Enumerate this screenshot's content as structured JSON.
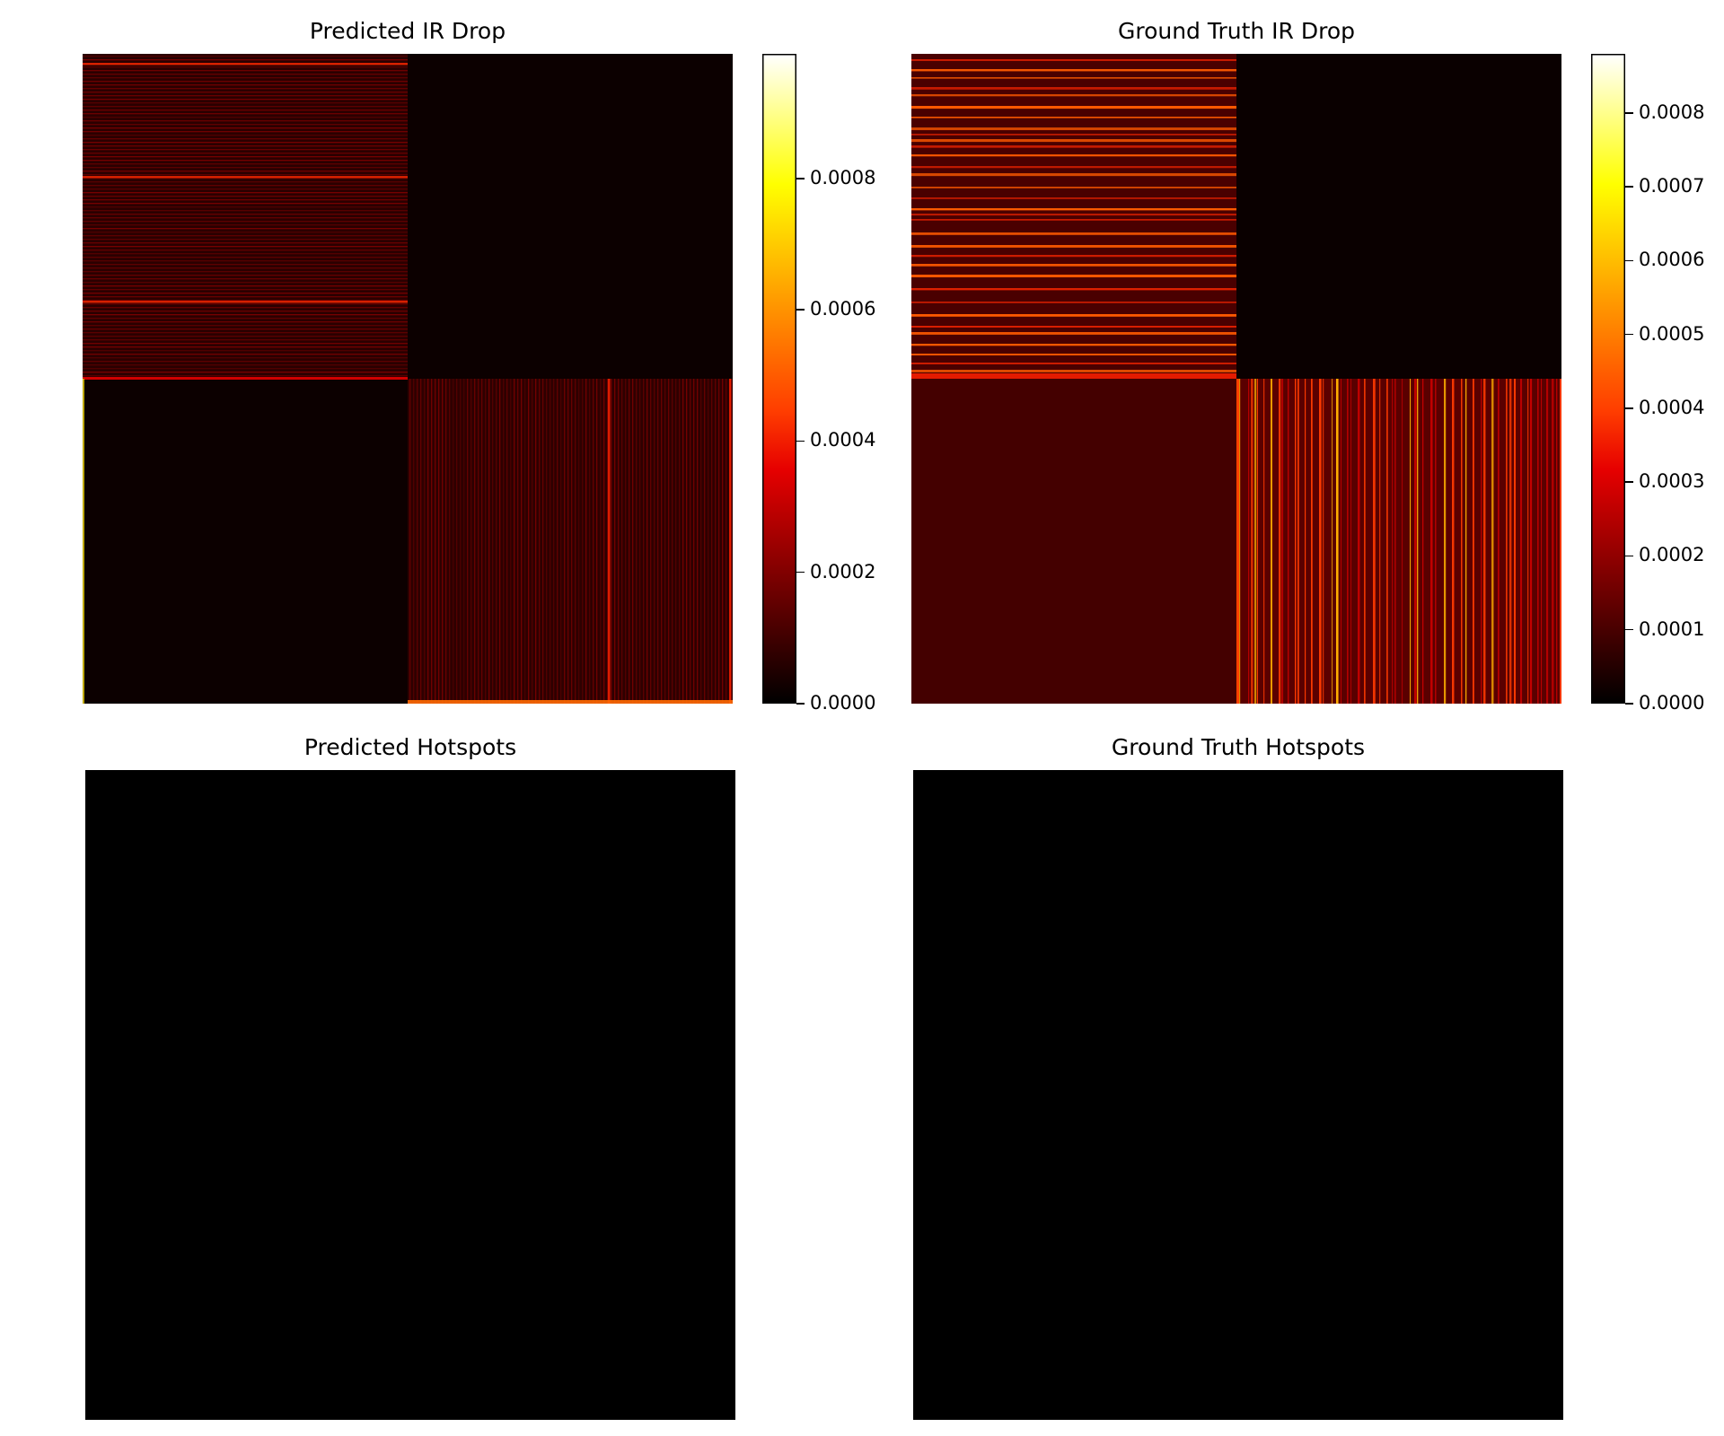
{
  "figure": {
    "colors": {
      "background": "#ffffff",
      "colormap_stops": [
        "#000000",
        "#e60000",
        "#ff3d00",
        "#ff9a00",
        "#ffff00",
        "#ffffff"
      ],
      "hotspot_black": "#000000"
    }
  },
  "chart_data": [
    {
      "type": "heatmap",
      "title": "Predicted IR Drop",
      "colormap": "hot",
      "axes_visible": false,
      "value_range": [
        0,
        0.00099
      ],
      "colorbar": {
        "ticks": [
          0,
          0.0002,
          0.0004,
          0.0006,
          0.0008
        ],
        "tick_labels": [
          "0.0000",
          "0.0002",
          "0.0004",
          "0.0006",
          "0.0008"
        ]
      },
      "quadrants": {
        "top_left": "dim red horizontal banding, mean about 0.00012",
        "top_right": "near zero",
        "bottom_left": "near zero",
        "bottom_right": "dim red vertical banding, mean about 0.00014"
      }
    },
    {
      "type": "heatmap",
      "title": "Ground Truth IR Drop",
      "colormap": "hot",
      "axes_visible": false,
      "value_range": [
        0,
        0.00088
      ],
      "colorbar": {
        "ticks": [
          0,
          0.0001,
          0.0002,
          0.0003,
          0.0004,
          0.0005,
          0.0006,
          0.0007,
          0.0008
        ],
        "tick_labels": [
          "0.0000",
          "0.0001",
          "0.0002",
          "0.0003",
          "0.0004",
          "0.0005",
          "0.0006",
          "0.0007",
          "0.0008"
        ]
      },
      "quadrants": {
        "top_left": "horizontal stripes about 0.0003-0.00045 on about 0.0001 background",
        "top_right": "near zero",
        "bottom_left": "uniform about 0.0001",
        "bottom_right": "vertical stripes about 0.0003-0.0006 on about 0.00015 background"
      }
    },
    {
      "type": "heatmap",
      "title": "Predicted Hotspots",
      "colormap": "gray",
      "axes_visible": false,
      "value_range": [
        0,
        0
      ],
      "quadrants": {
        "all": "zero (black)"
      }
    },
    {
      "type": "heatmap",
      "title": "Ground Truth Hotspots",
      "colormap": "gray",
      "axes_visible": false,
      "value_range": [
        0,
        0
      ],
      "quadrants": {
        "all": "zero (black)"
      }
    }
  ]
}
